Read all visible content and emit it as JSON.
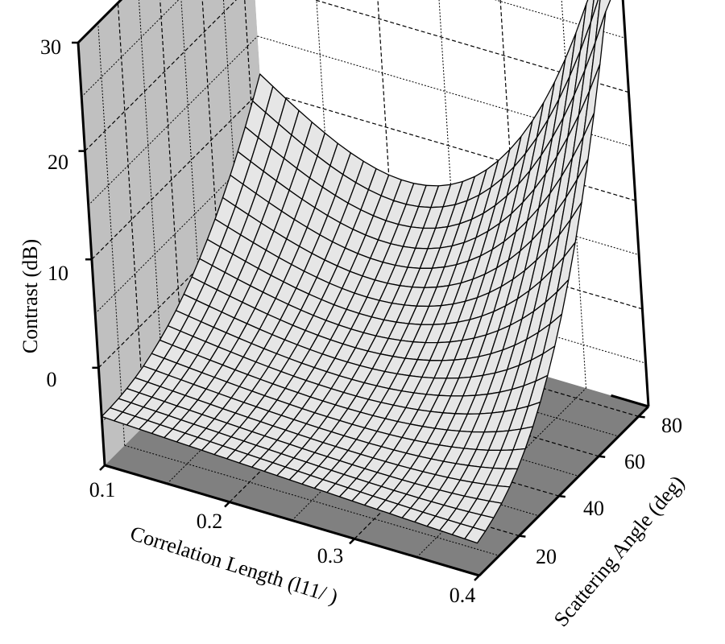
{
  "chart_data": {
    "type": "surface",
    "title": "",
    "xlabel": "Correlation Length (l11/ )",
    "ylabel": "Scattering Angle (deg)",
    "zlabel": "Contrast (dB)",
    "x_ticks": [
      "0.1",
      "0.2",
      "0.3",
      "0.4"
    ],
    "x_tick_values": [
      0.1,
      0.2,
      0.3,
      0.4
    ],
    "y_ticks": [
      "20",
      "40",
      "60",
      "80"
    ],
    "y_tick_values": [
      20,
      40,
      60,
      80
    ],
    "z_ticks": [
      "0",
      "10",
      "20",
      "30"
    ],
    "z_tick_values": [
      0,
      10,
      20,
      30
    ],
    "xlim": [
      0.1,
      0.4
    ],
    "ylim": [
      0,
      85
    ],
    "zlim": [
      -9,
      30
    ],
    "grid": true,
    "mesh_resolution": {
      "nx": 30,
      "ny": 20
    },
    "description": "Wireframe surface: contrast is about -4 dB at small angle and small correlation length, rises to a ridge near 12 dB at ~80 deg for small correlation length, dips to ~8-10 dB at mid correlation lengths near 80 deg, and climbs sharply to ~28 dB at correlation length 0.4 and 80-85 deg; near 0-20 deg the contrast is about -5 dB across correlation lengths, with a steep wall rising along the 0.4 edge.",
    "sample_points": [
      {
        "x": 0.1,
        "y": 0,
        "z": -4.5
      },
      {
        "x": 0.1,
        "y": 40,
        "z": -2
      },
      {
        "x": 0.1,
        "y": 70,
        "z": 9
      },
      {
        "x": 0.1,
        "y": 85,
        "z": 12
      },
      {
        "x": 0.25,
        "y": 0,
        "z": -5
      },
      {
        "x": 0.25,
        "y": 85,
        "z": 9
      },
      {
        "x": 0.4,
        "y": 0,
        "z": -6
      },
      {
        "x": 0.4,
        "y": 40,
        "z": 2
      },
      {
        "x": 0.4,
        "y": 70,
        "z": 18
      },
      {
        "x": 0.4,
        "y": 85,
        "z": 28
      }
    ]
  },
  "colors": {
    "surface": "#e6e6e6",
    "left_wall": "#c0c0c0",
    "back_wall": "#ffffff",
    "floor": "#808080",
    "lines": "#000000"
  }
}
